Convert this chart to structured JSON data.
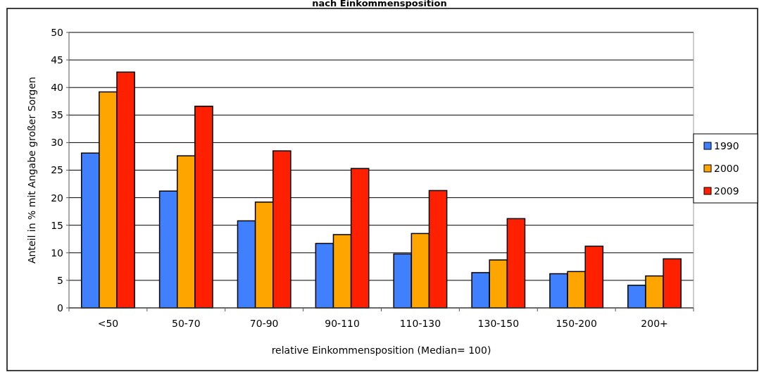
{
  "chart_data": {
    "type": "bar",
    "title": "nach Einkommensposition",
    "xlabel": "relative Einkommensposition (Median= 100)",
    "ylabel": "Anteil in % mit Angabe großer Sorgen",
    "categories": [
      "<50",
      "50-70",
      "70-90",
      "90-110",
      "110-130",
      "130-150",
      "150-200",
      "200+"
    ],
    "series": [
      {
        "name": "1990",
        "color": "#4080ff",
        "values": [
          28.1,
          21.2,
          15.8,
          11.7,
          9.8,
          6.4,
          6.2,
          4.1
        ]
      },
      {
        "name": "2000",
        "color": "#ffa500",
        "values": [
          39.2,
          27.6,
          19.2,
          13.3,
          13.5,
          8.7,
          6.6,
          5.8
        ]
      },
      {
        "name": "2009",
        "color": "#ff2000",
        "values": [
          42.8,
          36.6,
          28.5,
          25.3,
          21.3,
          16.2,
          11.2,
          8.9
        ]
      }
    ],
    "ylim": [
      0,
      50
    ],
    "yticks": [
      0,
      5,
      10,
      15,
      20,
      25,
      30,
      35,
      40,
      45,
      50
    ],
    "grid": "y",
    "legend": "right"
  }
}
